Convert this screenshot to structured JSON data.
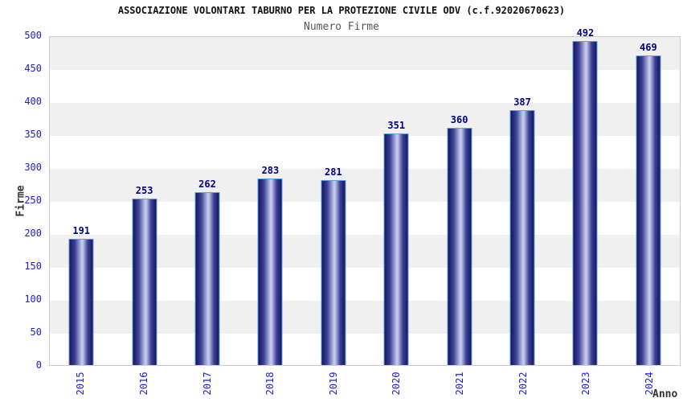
{
  "chart_data": {
    "type": "bar",
    "title": "ASSOCIAZIONE VOLONTARI TABURNO PER LA PROTEZIONE CIVILE ODV (c.f.92020670623)",
    "subtitle": "Numero Firme",
    "xlabel": "Anno",
    "ylabel": "Firme",
    "categories": [
      "2015",
      "2016",
      "2017",
      "2018",
      "2019",
      "2020",
      "2021",
      "2022",
      "2023",
      "2024"
    ],
    "values": [
      191,
      253,
      262,
      283,
      281,
      351,
      360,
      387,
      492,
      469
    ],
    "ylim": [
      0,
      500
    ],
    "ytick_step": 50,
    "legend_position": "none",
    "grid": "alternating-horizontal-bands",
    "x_tick_rotation_deg": 90,
    "colors": {
      "bar_dark": "#16165e",
      "bar_mid": "#3c4296",
      "bar_highlight": "#c3c9ec",
      "bar_border": "#5aa2e8",
      "tick_label": "#2020cf",
      "value_label": "#00008b",
      "title": "#111111",
      "subtitle": "#555555",
      "axis_title": "#333333",
      "band_gray": "#f0f0f0",
      "plot_border": "#cccccc",
      "background": "#ffffff"
    }
  }
}
